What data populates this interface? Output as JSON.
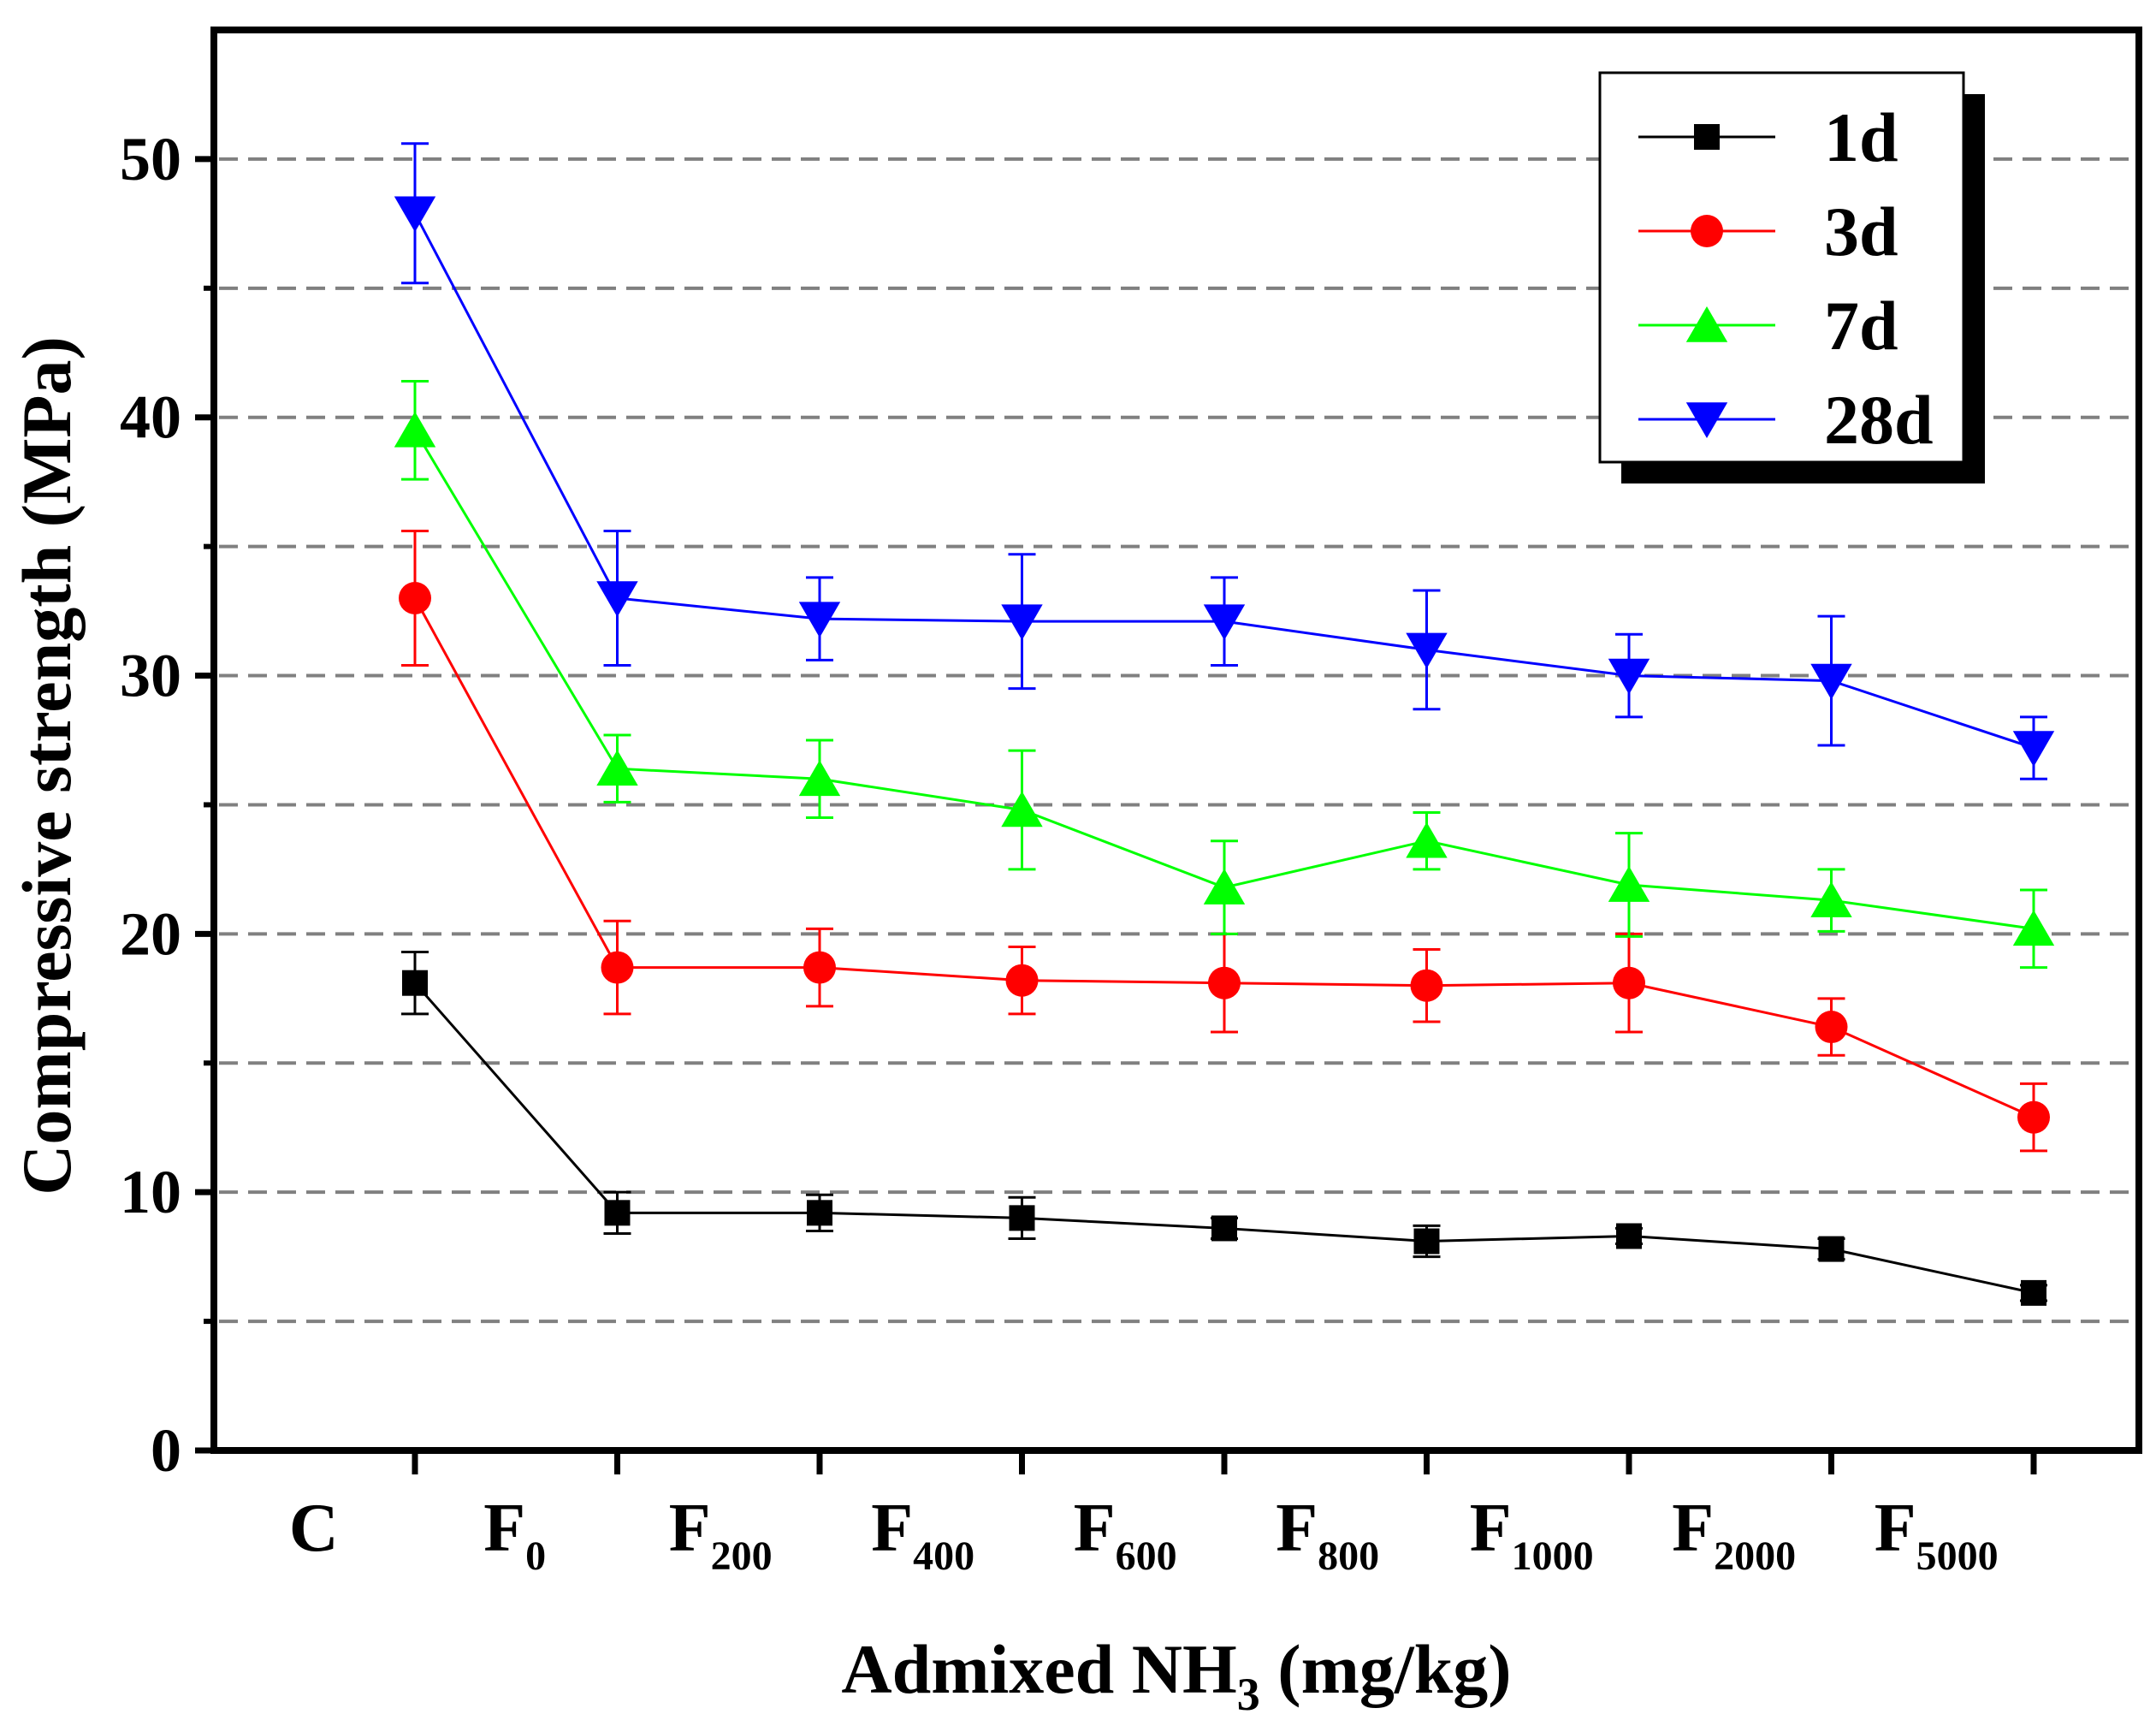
{
  "chart_data": {
    "type": "line",
    "title": "",
    "xlabel": "Admixed NH3 (mg/kg)",
    "xlabel_parts": {
      "main": "Admixed NH",
      "sub": "3",
      "tail": " (mg/kg)"
    },
    "ylabel": "Compressive strength (MPa)",
    "ylim": [
      0,
      55
    ],
    "y_ticks": [
      0,
      10,
      20,
      30,
      40,
      50
    ],
    "grid": {
      "y": true,
      "style": "dashed",
      "values": [
        5,
        10,
        15,
        20,
        25,
        30,
        35,
        40,
        45,
        50
      ]
    },
    "categories": [
      {
        "main": "C",
        "sub": ""
      },
      {
        "main": "F",
        "sub": "0"
      },
      {
        "main": "F",
        "sub": "200"
      },
      {
        "main": "F",
        "sub": "400"
      },
      {
        "main": "F",
        "sub": "600"
      },
      {
        "main": "F",
        "sub": "800"
      },
      {
        "main": "F",
        "sub": "1000"
      },
      {
        "main": "F",
        "sub": "2000"
      },
      {
        "main": "F",
        "sub": "5000"
      }
    ],
    "legend": {
      "position": "top-right"
    },
    "series": [
      {
        "name": "1d",
        "color": "#000000",
        "marker": "square",
        "values": [
          18.1,
          9.2,
          9.2,
          9.0,
          8.6,
          8.1,
          8.3,
          7.8,
          6.1
        ],
        "errors": [
          1.2,
          0.8,
          0.7,
          0.8,
          0.4,
          0.6,
          0.3,
          0.4,
          0.3
        ]
      },
      {
        "name": "3d",
        "color": "#ff0000",
        "marker": "circle",
        "values": [
          33.0,
          18.7,
          18.7,
          18.2,
          18.1,
          18.0,
          18.1,
          16.4,
          12.9
        ],
        "errors": [
          2.6,
          1.8,
          1.5,
          1.3,
          1.9,
          1.4,
          1.9,
          1.1,
          1.3
        ]
      },
      {
        "name": "7d",
        "color": "#00ff00",
        "marker": "triangle-up",
        "values": [
          39.5,
          26.4,
          26.0,
          24.8,
          21.8,
          23.6,
          21.9,
          21.3,
          20.2
        ],
        "errors": [
          1.9,
          1.3,
          1.5,
          2.3,
          1.8,
          1.1,
          2.0,
          1.2,
          1.5
        ]
      },
      {
        "name": "28d",
        "color": "#0000ff",
        "marker": "triangle-down",
        "values": [
          47.9,
          33.0,
          32.2,
          32.1,
          32.1,
          31.0,
          30.0,
          29.8,
          27.2
        ],
        "errors": [
          2.7,
          2.6,
          1.6,
          2.6,
          1.7,
          2.3,
          1.6,
          2.5,
          1.2
        ]
      }
    ]
  }
}
